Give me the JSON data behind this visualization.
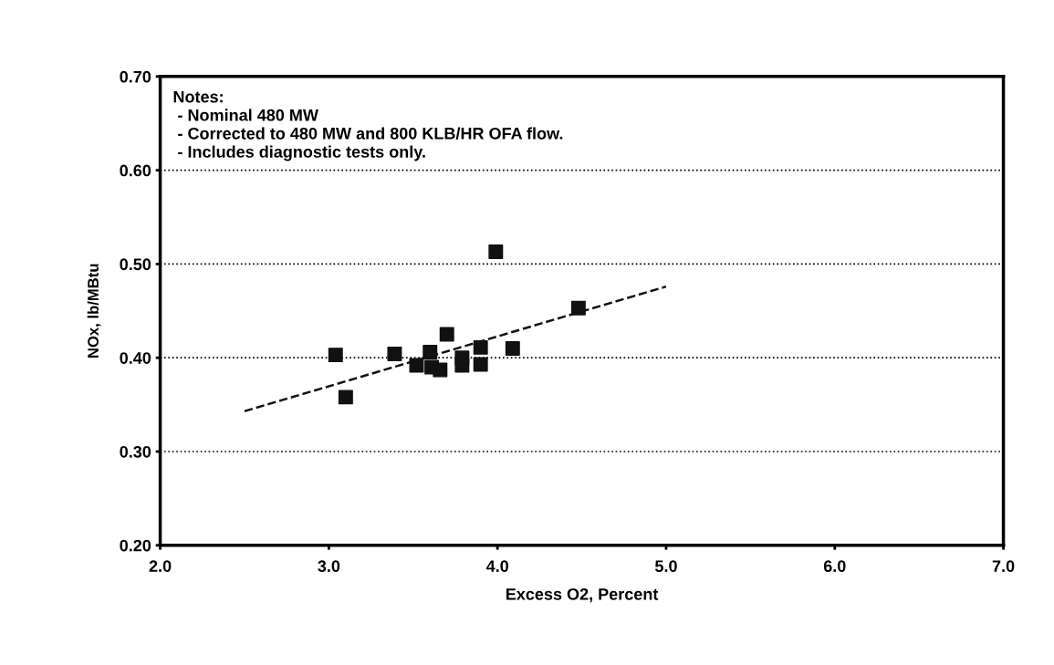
{
  "chart_data": {
    "type": "scatter",
    "xlabel": "Excess O2, Percent",
    "ylabel": "NOx, lb/MBtu",
    "xlim": [
      2.0,
      7.0
    ],
    "xticks": [
      {
        "value": 2,
        "label": "2.0"
      },
      {
        "value": 3,
        "label": "3.0"
      },
      {
        "value": 4,
        "label": "4.0"
      },
      {
        "value": 5,
        "label": "5.0"
      },
      {
        "value": 6,
        "label": "6.0"
      },
      {
        "value": 7,
        "label": "7.0"
      }
    ],
    "ylim": [
      0.2,
      0.7
    ],
    "yticks": [
      {
        "value": 0.2,
        "label": "0.20"
      },
      {
        "value": 0.3,
        "label": "0.30"
      },
      {
        "value": 0.4,
        "label": "0.40"
      },
      {
        "value": 0.5,
        "label": "0.50"
      },
      {
        "value": 0.6,
        "label": "0.60"
      },
      {
        "value": 0.7,
        "label": "0.70"
      }
    ],
    "grid": "y",
    "marker": "square",
    "series": [
      {
        "type": "scatter",
        "color": "#111111",
        "x": [
          3.04,
          3.1,
          3.39,
          3.52,
          3.6,
          3.61,
          3.66,
          3.7,
          3.79,
          3.79,
          3.9,
          3.9,
          4.09,
          3.99,
          4.48
        ],
        "values": [
          0.403,
          0.358,
          0.404,
          0.392,
          0.406,
          0.39,
          0.387,
          0.425,
          0.4,
          0.392,
          0.411,
          0.393,
          0.41,
          0.513,
          0.453
        ]
      },
      {
        "type": "line",
        "color": "#111111",
        "line_style": "dashed",
        "marker": "none",
        "x": [
          2.5,
          5.0
        ],
        "values": [
          0.343,
          0.476
        ]
      }
    ],
    "annotations": [
      "Notes:\n - Nominal 480 MW\n - Corrected to 480 MW and 800 KLB/HR OFA flow.\n - Includes diagnostic tests only."
    ]
  }
}
